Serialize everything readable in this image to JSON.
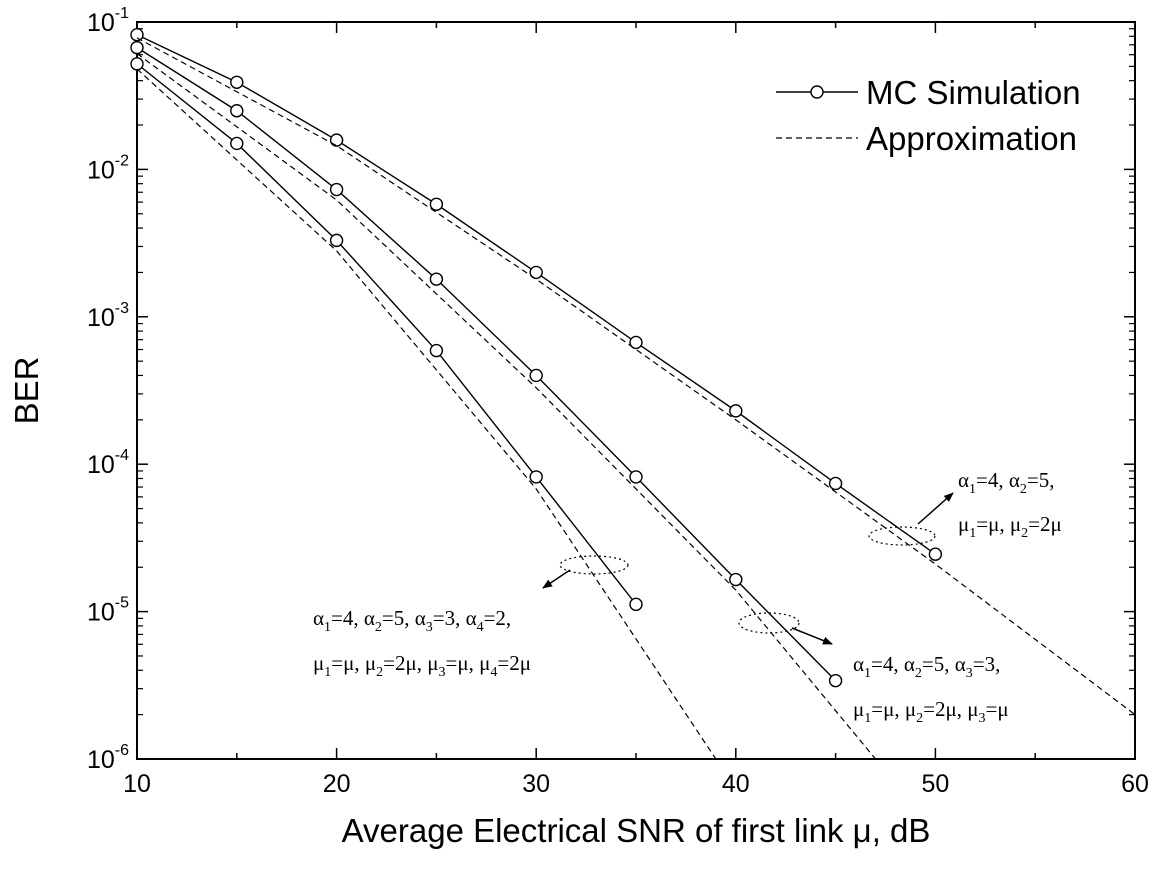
{
  "chart_data": {
    "type": "line",
    "xlabel": "Average Electrical SNR of first link μ, dB",
    "ylabel": "BER",
    "xlim": [
      10,
      60
    ],
    "ylim": [
      1e-06,
      0.1
    ],
    "yscale": "log",
    "x_ticks": [
      "10",
      "20",
      "30",
      "40",
      "50",
      "60"
    ],
    "y_ticks": [
      {
        "base": "10",
        "exp": "-1"
      },
      {
        "base": "10",
        "exp": "-2"
      },
      {
        "base": "10",
        "exp": "-3"
      },
      {
        "base": "10",
        "exp": "-4"
      },
      {
        "base": "10",
        "exp": "-5"
      },
      {
        "base": "10",
        "exp": "-6"
      }
    ],
    "grid": false,
    "legend_position": "top-right",
    "legend": [
      {
        "label": "MC Simulation",
        "style": "solid-circle"
      },
      {
        "label": "Approximation",
        "style": "dashed"
      }
    ],
    "series": [
      {
        "group": "2-hop",
        "kind": "MC Simulation",
        "x": [
          10,
          15,
          20,
          25,
          30,
          35,
          40,
          45,
          50
        ],
        "y": [
          0.082,
          0.039,
          0.0158,
          0.0058,
          0.002,
          0.00067,
          0.00023,
          7.4e-05,
          2.45e-05
        ]
      },
      {
        "group": "2-hop",
        "kind": "Approximation",
        "x": [
          10,
          20,
          30,
          40,
          50,
          60
        ],
        "y": [
          0.078,
          0.0145,
          0.0018,
          0.0002,
          2.1e-05,
          2e-06
        ]
      },
      {
        "group": "3-hop",
        "kind": "MC Simulation",
        "x": [
          10,
          15,
          20,
          25,
          30,
          35,
          40,
          45
        ],
        "y": [
          0.067,
          0.025,
          0.0073,
          0.0018,
          0.0004,
          8.2e-05,
          1.65e-05,
          3.4e-06
        ]
      },
      {
        "group": "3-hop",
        "kind": "Approximation",
        "x": [
          10,
          20,
          30,
          40,
          47
        ],
        "y": [
          0.061,
          0.0062,
          0.00033,
          1.4e-05,
          1e-06
        ]
      },
      {
        "group": "4-hop",
        "kind": "MC Simulation",
        "x": [
          10,
          15,
          20,
          25,
          30,
          35
        ],
        "y": [
          0.052,
          0.015,
          0.0033,
          0.00059,
          8.2e-05,
          1.12e-05
        ]
      },
      {
        "group": "4-hop",
        "kind": "Approximation",
        "x": [
          10,
          20,
          30,
          39
        ],
        "y": [
          0.048,
          0.0028,
          6.8e-05,
          1e-06
        ]
      }
    ],
    "annotations": [
      {
        "lines": [
          [
            [
              "α",
              "1",
              "=4, "
            ],
            [
              "α",
              "2",
              "=5,"
            ]
          ],
          [
            [
              "μ",
              "1",
              "=μ, "
            ],
            [
              "μ",
              "2",
              "=2μ"
            ]
          ]
        ]
      },
      {
        "lines": [
          [
            [
              "α",
              "1",
              "=4, "
            ],
            [
              "α",
              "2",
              "=5, "
            ],
            [
              "α",
              "3",
              "=3, "
            ],
            [
              "α",
              "4",
              "=2,"
            ]
          ],
          [
            [
              "μ",
              "1",
              "=μ, "
            ],
            [
              "μ",
              "2",
              "=2μ, "
            ],
            [
              "μ",
              "3",
              "=μ, "
            ],
            [
              "μ",
              "4",
              "=2μ"
            ]
          ]
        ]
      },
      {
        "lines": [
          [
            [
              "α",
              "1",
              "=4, "
            ],
            [
              "α",
              "2",
              "=5, "
            ],
            [
              "α",
              "3",
              "=3,"
            ]
          ],
          [
            [
              "μ",
              "1",
              "=μ, "
            ],
            [
              "μ",
              "2",
              "=2μ, "
            ],
            [
              "μ",
              "3",
              "=μ"
            ]
          ]
        ]
      }
    ]
  }
}
